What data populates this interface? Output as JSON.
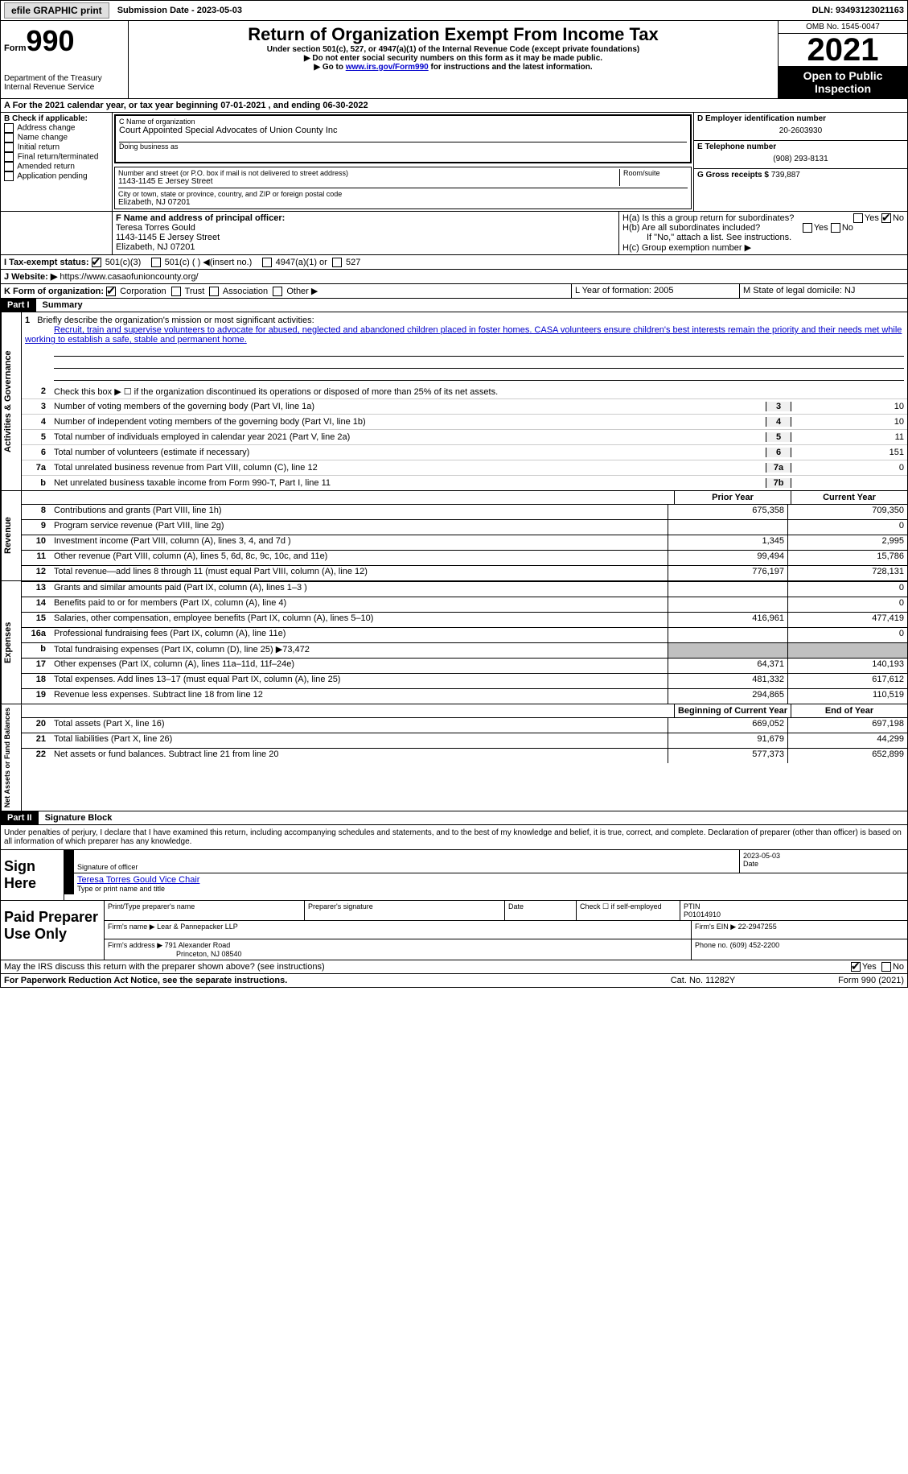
{
  "top": {
    "efile": "efile GRAPHIC print",
    "submission": "Submission Date - 2023-05-03",
    "dln": "DLN: 93493123021163"
  },
  "header": {
    "form": "Form",
    "num": "990",
    "dept": "Department of the Treasury\nInternal Revenue Service",
    "title": "Return of Organization Exempt From Income Tax",
    "sub1": "Under section 501(c), 527, or 4947(a)(1) of the Internal Revenue Code (except private foundations)",
    "sub2": "▶ Do not enter social security numbers on this form as it may be made public.",
    "sub3a": "▶ Go to ",
    "sub3link": "www.irs.gov/Form990",
    "sub3b": " for instructions and the latest information.",
    "omb": "OMB No. 1545-0047",
    "year": "2021",
    "public": "Open to Public Inspection"
  },
  "a": "A For the 2021 calendar year, or tax year beginning 07-01-2021   , and ending 06-30-2022",
  "b": {
    "label": "B Check if applicable:",
    "opts": [
      "Address change",
      "Name change",
      "Initial return",
      "Final return/terminated",
      "Amended return",
      "Application pending"
    ]
  },
  "c": {
    "name_label": "C Name of organization",
    "name": "Court Appointed Special Advocates of Union County Inc",
    "dba_label": "Doing business as",
    "addr_label": "Number and street (or P.O. box if mail is not delivered to street address)",
    "room": "Room/suite",
    "addr": "1143-1145 E Jersey Street",
    "city_label": "City or town, state or province, country, and ZIP or foreign postal code",
    "city": "Elizabeth, NJ  07201"
  },
  "d": {
    "ein_label": "D Employer identification number",
    "ein": "20-2603930",
    "tel_label": "E Telephone number",
    "tel": "(908) 293-8131",
    "gross_label": "G Gross receipts $",
    "gross": "739,887"
  },
  "f": {
    "label": "F Name and address of principal officer:",
    "name": "Teresa Torres Gould",
    "addr": "1143-1145 E Jersey Street",
    "city": "Elizabeth, NJ  07201"
  },
  "h": {
    "a": "H(a)  Is this a group return for subordinates?",
    "b": "H(b)  Are all subordinates included?",
    "note": "If \"No,\" attach a list. See instructions.",
    "c": "H(c)  Group exemption number ▶"
  },
  "i": {
    "label": "I  Tax-exempt status:",
    "o1": "501(c)(3)",
    "o2": "501(c) (  ) ◀(insert no.)",
    "o3": "4947(a)(1) or",
    "o4": "527"
  },
  "j": {
    "label": "J Website: ▶ ",
    "url": "https://www.casaofunioncounty.org/"
  },
  "k": "K Form of organization:",
  "k_opts": [
    "Corporation",
    "Trust",
    "Association",
    "Other ▶"
  ],
  "l": "L Year of formation: 2005",
  "m": "M State of legal domicile: NJ",
  "part1": {
    "num": "Part I",
    "title": "Summary"
  },
  "mission": {
    "label": "Briefly describe the organization's mission or most significant activities:",
    "text": "Recruit, train and supervise volunteers to advocate for abused, neglected and abandoned children placed in foster homes. CASA volunteers ensure children's best interests remain the priority and their needs met while working to establish a safe, stable and permanent home."
  },
  "lines_ag": [
    {
      "n": "2",
      "t": "Check this box ▶ ☐ if the organization discontinued its operations or disposed of more than 25% of its net assets."
    },
    {
      "n": "3",
      "t": "Number of voting members of the governing body (Part VI, line 1a)",
      "box": "3",
      "v": "10"
    },
    {
      "n": "4",
      "t": "Number of independent voting members of the governing body (Part VI, line 1b)",
      "box": "4",
      "v": "10"
    },
    {
      "n": "5",
      "t": "Total number of individuals employed in calendar year 2021 (Part V, line 2a)",
      "box": "5",
      "v": "11"
    },
    {
      "n": "6",
      "t": "Total number of volunteers (estimate if necessary)",
      "box": "6",
      "v": "151"
    },
    {
      "n": "7a",
      "t": "Total unrelated business revenue from Part VIII, column (C), line 12",
      "box": "7a",
      "v": "0"
    },
    {
      "n": "b",
      "t": "Net unrelated business taxable income from Form 990-T, Part I, line 11",
      "box": "7b",
      "v": ""
    }
  ],
  "col_headers": {
    "prior": "Prior Year",
    "current": "Current Year"
  },
  "revenue": [
    {
      "n": "8",
      "t": "Contributions and grants (Part VIII, line 1h)",
      "p": "675,358",
      "c": "709,350"
    },
    {
      "n": "9",
      "t": "Program service revenue (Part VIII, line 2g)",
      "p": "",
      "c": "0"
    },
    {
      "n": "10",
      "t": "Investment income (Part VIII, column (A), lines 3, 4, and 7d )",
      "p": "1,345",
      "c": "2,995"
    },
    {
      "n": "11",
      "t": "Other revenue (Part VIII, column (A), lines 5, 6d, 8c, 9c, 10c, and 11e)",
      "p": "99,494",
      "c": "15,786"
    },
    {
      "n": "12",
      "t": "Total revenue—add lines 8 through 11 (must equal Part VIII, column (A), line 12)",
      "p": "776,197",
      "c": "728,131"
    }
  ],
  "expenses": [
    {
      "n": "13",
      "t": "Grants and similar amounts paid (Part IX, column (A), lines 1–3 )",
      "p": "",
      "c": "0"
    },
    {
      "n": "14",
      "t": "Benefits paid to or for members (Part IX, column (A), line 4)",
      "p": "",
      "c": "0"
    },
    {
      "n": "15",
      "t": "Salaries, other compensation, employee benefits (Part IX, column (A), lines 5–10)",
      "p": "416,961",
      "c": "477,419"
    },
    {
      "n": "16a",
      "t": "Professional fundraising fees (Part IX, column (A), line 11e)",
      "p": "",
      "c": "0"
    },
    {
      "n": "b",
      "t": "Total fundraising expenses (Part IX, column (D), line 25) ▶73,472",
      "p": "gray",
      "c": "gray"
    },
    {
      "n": "17",
      "t": "Other expenses (Part IX, column (A), lines 11a–11d, 11f–24e)",
      "p": "64,371",
      "c": "140,193"
    },
    {
      "n": "18",
      "t": "Total expenses. Add lines 13–17 (must equal Part IX, column (A), line 25)",
      "p": "481,332",
      "c": "617,612"
    },
    {
      "n": "19",
      "t": "Revenue less expenses. Subtract line 18 from line 12",
      "p": "294,865",
      "c": "110,519"
    }
  ],
  "net_headers": {
    "prior": "Beginning of Current Year",
    "current": "End of Year"
  },
  "net": [
    {
      "n": "20",
      "t": "Total assets (Part X, line 16)",
      "p": "669,052",
      "c": "697,198"
    },
    {
      "n": "21",
      "t": "Total liabilities (Part X, line 26)",
      "p": "91,679",
      "c": "44,299"
    },
    {
      "n": "22",
      "t": "Net assets or fund balances. Subtract line 21 from line 20",
      "p": "577,373",
      "c": "652,899"
    }
  ],
  "part2": {
    "num": "Part II",
    "title": "Signature Block"
  },
  "sig_decl": "Under penalties of perjury, I declare that I have examined this return, including accompanying schedules and statements, and to the best of my knowledge and belief, it is true, correct, and complete. Declaration of preparer (other than officer) is based on all information of which preparer has any knowledge.",
  "sign": {
    "label": "Sign Here",
    "officer": "Signature of officer",
    "date": "2023-05-03",
    "name": "Teresa Torres Gould  Vice Chair",
    "name_label": "Type or print name and title",
    "date_label": "Date"
  },
  "paid": {
    "label": "Paid Preparer Use Only",
    "col1": "Print/Type preparer's name",
    "col2": "Preparer's signature",
    "col3": "Date",
    "col4": "Check ☐ if self-employed",
    "ptin_label": "PTIN",
    "ptin": "P01014910",
    "firm_name_label": "Firm's name    ▶",
    "firm_name": "Lear & Pannepacker LLP",
    "firm_ein_label": "Firm's EIN ▶",
    "firm_ein": "22-2947255",
    "firm_addr_label": "Firm's address ▶",
    "firm_addr": "791 Alexander Road",
    "firm_city": "Princeton, NJ  08540",
    "phone_label": "Phone no.",
    "phone": "(609) 452-2200"
  },
  "discuss": "May the IRS discuss this return with the preparer shown above? (see instructions)",
  "footer": {
    "left": "For Paperwork Reduction Act Notice, see the separate instructions.",
    "center": "Cat. No. 11282Y",
    "right": "Form 990 (2021)"
  },
  "yes": "Yes",
  "no": "No",
  "vlabels": {
    "ag": "Activities & Governance",
    "rev": "Revenue",
    "exp": "Expenses",
    "net": "Net Assets or Fund Balances"
  }
}
